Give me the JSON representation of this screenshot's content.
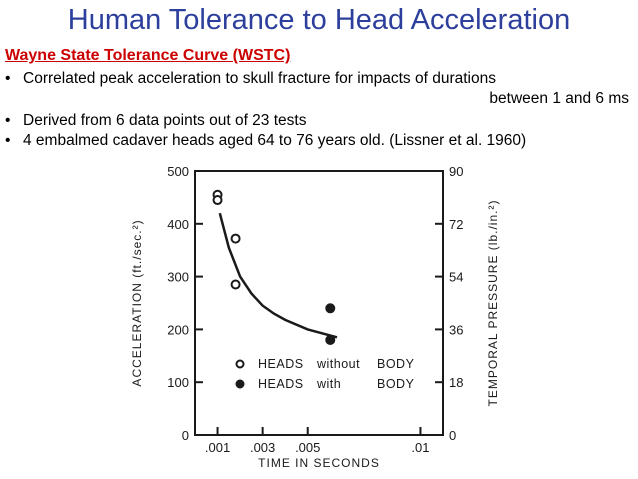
{
  "slide": {
    "title": "Human Tolerance to Head Acceleration",
    "subtitle": "Wayne State Tolerance Curve (WSTC)",
    "bullets": [
      {
        "text": "Correlated peak acceleration to skull fracture for impacts of durations",
        "text2": "between 1 and 6 ms"
      },
      {
        "text": "Derived from 6 data points out of 23 tests"
      },
      {
        "text": "4 embalmed cadaver heads aged 64 to 76 years old. (Lissner et al. 1960)"
      }
    ],
    "bullet_char": "•"
  },
  "chart_data": {
    "type": "scatter",
    "xlabel": "TIME IN SECONDS",
    "ylabel": "ACCELERATION (ft./sec.²)",
    "y2label": "TEMPORAL PRESSURE (lb./in.²)",
    "xlim": [
      0,
      0.011
    ],
    "ylim": [
      0,
      500
    ],
    "y2lim": [
      0,
      90
    ],
    "x_ticks": [
      {
        "v": 0.001,
        "label": ".001"
      },
      {
        "v": 0.003,
        "label": ".003"
      },
      {
        "v": 0.005,
        "label": ".005"
      },
      {
        "v": 0.01,
        "label": ".01"
      }
    ],
    "y_ticks": [
      {
        "v": 0,
        "label": "0"
      },
      {
        "v": 100,
        "label": "100"
      },
      {
        "v": 200,
        "label": "200"
      },
      {
        "v": 300,
        "label": "300"
      },
      {
        "v": 400,
        "label": "400"
      },
      {
        "v": 500,
        "label": "500"
      }
    ],
    "y2_ticks": [
      {
        "v": 0,
        "label": "0"
      },
      {
        "v": 18,
        "label": "18"
      },
      {
        "v": 36,
        "label": "36"
      },
      {
        "v": 54,
        "label": "54"
      },
      {
        "v": 72,
        "label": "72"
      },
      {
        "v": 90,
        "label": "90"
      }
    ],
    "series": [
      {
        "name": "HEADS without BODY",
        "marker": "open-circle",
        "x": [
          0.001,
          0.001,
          0.0018,
          0.0018
        ],
        "y": [
          455,
          445,
          372,
          285
        ]
      },
      {
        "name": "HEADS with BODY",
        "marker": "filled-circle",
        "x": [
          0.006,
          0.006
        ],
        "y": [
          240,
          180
        ]
      }
    ],
    "curve": {
      "x": [
        0.0011,
        0.0015,
        0.002,
        0.0025,
        0.003,
        0.0035,
        0.004,
        0.005,
        0.0063
      ],
      "y": [
        420,
        355,
        300,
        268,
        245,
        230,
        218,
        200,
        185
      ]
    },
    "legend": {
      "position": "bottom-center",
      "rows": [
        {
          "marker": "open-circle",
          "parts": [
            "HEADS",
            "without",
            "BODY"
          ]
        },
        {
          "marker": "filled-circle",
          "parts": [
            "HEADS",
            "with",
            "BODY"
          ]
        }
      ]
    },
    "grid": false
  }
}
